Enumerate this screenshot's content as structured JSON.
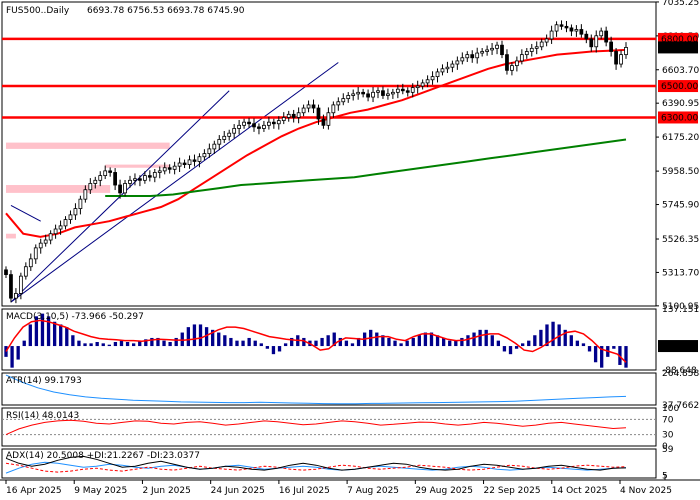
{
  "chart_data": {
    "type": "candlestick",
    "symbol_label": "FUS500..Daily",
    "ohlc_text": "6693.78 6756.53 6693.78 6745.90",
    "ohlc": {
      "open": 6693.78,
      "high": 6756.53,
      "low": 6693.78,
      "close": 6745.9
    },
    "colors": {
      "level": "#ff0000",
      "ma_fast": "#ff0000",
      "ma_slow": "#008000",
      "trendline": "#000080",
      "zone": "#ffb6c1",
      "macd_hist": "#00008b",
      "macd_signal": "#ff0000",
      "atr": "#1e90ff",
      "rsi": "#ff0000",
      "adx": "#000000",
      "di_plus": "#1e90ff",
      "di_minus": "#ff0000"
    },
    "x_labels": [
      "16 Apr 2025",
      "9 May 2025",
      "2 Jun 2025",
      "24 Jun 2025",
      "16 Jul 2025",
      "7 Aug 2025",
      "29 Aug 2025",
      "22 Sep 2025",
      "14 Oct 2025",
      "4 Nov 2025"
    ],
    "price": {
      "ylim": [
        5100,
        7035
      ],
      "y_ticks": [
        "7035.25",
        "6819.50",
        "6603.70",
        "6390.95",
        "6175.20",
        "5958.50",
        "5745.90",
        "5526.35",
        "5313.70",
        "5100.95"
      ],
      "levels": [
        {
          "label": "6800.00",
          "value": 6800
        },
        {
          "label": "6500.00",
          "value": 6500
        },
        {
          "label": "6300.00",
          "value": 6300
        }
      ],
      "current_label": "6745.90",
      "current": 6745.9,
      "closes": [
        5300,
        5150,
        5180,
        5290,
        5350,
        5400,
        5470,
        5500,
        5520,
        5560,
        5590,
        5610,
        5650,
        5680,
        5720,
        5780,
        5840,
        5880,
        5900,
        5930,
        5960,
        5950,
        5870,
        5820,
        5880,
        5900,
        5910,
        5900,
        5930,
        5920,
        5950,
        5960,
        5980,
        5970,
        5990,
        6010,
        6000,
        6030,
        6020,
        6050,
        6070,
        6100,
        6130,
        6160,
        6180,
        6200,
        6230,
        6250,
        6270,
        6260,
        6240,
        6230,
        6250,
        6270,
        6260,
        6280,
        6300,
        6320,
        6300,
        6330,
        6360,
        6380,
        6360,
        6290,
        6250,
        6330,
        6380,
        6400,
        6420,
        6440,
        6450,
        6460,
        6450,
        6430,
        6460,
        6470,
        6440,
        6450,
        6460,
        6480,
        6470,
        6460,
        6490,
        6500,
        6520,
        6540,
        6560,
        6590,
        6610,
        6620,
        6640,
        6660,
        6680,
        6700,
        6680,
        6710,
        6720,
        6730,
        6740,
        6760,
        6700,
        6600,
        6630,
        6660,
        6700,
        6720,
        6740,
        6750,
        6780,
        6800,
        6850,
        6890,
        6880,
        6870,
        6850,
        6860,
        6830,
        6800,
        6750,
        6820,
        6850,
        6780,
        6720,
        6640,
        6700,
        6745.9
      ],
      "ma_fast": [
        5690,
        5560,
        5540,
        5560,
        5600,
        5620,
        5640,
        5670,
        5700,
        5730,
        5780,
        5850,
        5920,
        5990,
        6060,
        6120,
        6180,
        6230,
        6270,
        6300,
        6330,
        6350,
        6380,
        6410,
        6450,
        6490,
        6530,
        6570,
        6610,
        6640,
        6660,
        6680,
        6700,
        6710,
        6720,
        6725,
        6730
      ],
      "ma_slow": [
        5800,
        5800,
        5800,
        5810,
        5830,
        5850,
        5870,
        5880,
        5890,
        5900,
        5910,
        5920,
        5940,
        5960,
        5980,
        6000,
        6020,
        6040,
        6060,
        6080,
        6100,
        6120,
        6140,
        6160
      ],
      "zones": [
        {
          "from": 0,
          "to": 33,
          "lo": 6100,
          "hi": 6140
        },
        {
          "from": 0,
          "to": 21,
          "lo": 5820,
          "hi": 5870
        },
        {
          "from": 20,
          "to": 33,
          "lo": 5980,
          "hi": 6000
        },
        {
          "from": 0,
          "to": 2,
          "lo": 5530,
          "hi": 5560
        }
      ],
      "trendlines": [
        {
          "x0": 1,
          "y0": 5125,
          "x1": 45,
          "y1": 6470
        },
        {
          "x0": 1,
          "y0": 5125,
          "x1": 67,
          "y1": 6650
        },
        {
          "x0": 1,
          "y0": 5740,
          "x1": 7,
          "y1": 5640
        }
      ]
    },
    "macd": {
      "label": "MACD(3,10,5) -73.966 -50.297",
      "main": -73.966,
      "signal": -50.297,
      "ylim": [
        -88.648,
        137.151
      ],
      "y_ticks": [
        "137.151",
        "0.00",
        "-88.648"
      ],
      "hist": [
        -40,
        -80,
        -50,
        20,
        80,
        110,
        120,
        110,
        90,
        80,
        70,
        40,
        20,
        10,
        10,
        15,
        10,
        5,
        15,
        20,
        15,
        10,
        20,
        25,
        30,
        30,
        20,
        15,
        30,
        50,
        70,
        80,
        80,
        70,
        60,
        50,
        40,
        30,
        20,
        20,
        30,
        20,
        10,
        -10,
        -30,
        -20,
        10,
        30,
        40,
        30,
        20,
        20,
        30,
        40,
        50,
        30,
        20,
        10,
        30,
        50,
        60,
        50,
        40,
        30,
        20,
        10,
        20,
        30,
        40,
        50,
        50,
        40,
        30,
        20,
        20,
        30,
        40,
        50,
        60,
        60,
        40,
        20,
        -20,
        -30,
        -10,
        10,
        20,
        40,
        60,
        80,
        90,
        80,
        60,
        40,
        20,
        10,
        -20,
        -60,
        -80,
        -40,
        -10,
        -70,
        -80
      ],
      "signal_line": [
        -20,
        30,
        70,
        90,
        95,
        90,
        80,
        70,
        55,
        45,
        35,
        28,
        25,
        23,
        20,
        20,
        18,
        22,
        25,
        24,
        22,
        22,
        25,
        30,
        45,
        60,
        70,
        70,
        65,
        55,
        45,
        35,
        30,
        25,
        22,
        20,
        5,
        -15,
        -10,
        15,
        30,
        28,
        25,
        30,
        35,
        35,
        25,
        20,
        35,
        45,
        45,
        35,
        25,
        20,
        22,
        30,
        40,
        45,
        45,
        30,
        10,
        -15,
        -20,
        -5,
        15,
        35,
        50,
        55,
        45,
        20,
        -10,
        -20,
        -30,
        -60
      ]
    },
    "atr": {
      "label": "ATR(14) 99.1793",
      "value": 99.1793,
      "ylim": [
        37.7662,
        264.8588
      ],
      "y_ticks": [
        "264.8588",
        "37.7662"
      ],
      "values": [
        250,
        200,
        160,
        130,
        110,
        95,
        85,
        78,
        72,
        68,
        65,
        60,
        58,
        56,
        55,
        55,
        57,
        55,
        52,
        50,
        48,
        46,
        47,
        49,
        50,
        52,
        54,
        55,
        56,
        58,
        60,
        62,
        65,
        70,
        75,
        80,
        85,
        90,
        95,
        99
      ]
    },
    "rsi": {
      "label": "RSI(14) 48.0143",
      "value": 48.0143,
      "ylim": [
        0,
        100
      ],
      "y_ticks": [
        "100",
        "70",
        "30",
        "0"
      ],
      "values": [
        30,
        45,
        55,
        62,
        66,
        68,
        65,
        60,
        58,
        62,
        66,
        65,
        60,
        58,
        62,
        64,
        60,
        55,
        58,
        62,
        66,
        64,
        60,
        56,
        58,
        62,
        66,
        64,
        60,
        55,
        57,
        60,
        63,
        62,
        58,
        55,
        58,
        62,
        60,
        56,
        52,
        55,
        60,
        62,
        58,
        54,
        50,
        46,
        48
      ]
    },
    "adx": {
      "label": "ADX(14) 20.5008 +DI:21.2267 -DI:23.0377",
      "adx": 20.5008,
      "di_plus": 21.2267,
      "di_minus": 23.0377,
      "ylim": [
        0,
        59
      ],
      "y_ticks": [
        "59",
        "5",
        "1"
      ],
      "adx_values": [
        40,
        30,
        24,
        28,
        36,
        42,
        44,
        38,
        30,
        22,
        24,
        30,
        34,
        28,
        22,
        18,
        20,
        24,
        22,
        18,
        16,
        20,
        26,
        30,
        26,
        20,
        16,
        18,
        22,
        26,
        30,
        28,
        22,
        18,
        16,
        18,
        24,
        28,
        26,
        22,
        18,
        20,
        24,
        26,
        22,
        18,
        16,
        20,
        20.5
      ],
      "di_plus_values": [
        10,
        20,
        28,
        32,
        30,
        26,
        22,
        24,
        28,
        26,
        22,
        20,
        24,
        26,
        22,
        18,
        20,
        24,
        26,
        22,
        18,
        20,
        22,
        24,
        22,
        18,
        16,
        18,
        22,
        24,
        22,
        20,
        18,
        16,
        18,
        22,
        24,
        22,
        18,
        16,
        18,
        20,
        22,
        20,
        18,
        16,
        18,
        20,
        21.2
      ],
      "di_minus_values": [
        30,
        26,
        20,
        14,
        12,
        14,
        18,
        20,
        16,
        14,
        18,
        22,
        18,
        16,
        20,
        24,
        20,
        18,
        16,
        20,
        24,
        22,
        18,
        16,
        18,
        22,
        26,
        24,
        20,
        18,
        20,
        22,
        26,
        24,
        22,
        18,
        16,
        18,
        22,
        26,
        24,
        20,
        18,
        20,
        24,
        26,
        24,
        22,
        23
      ]
    }
  }
}
